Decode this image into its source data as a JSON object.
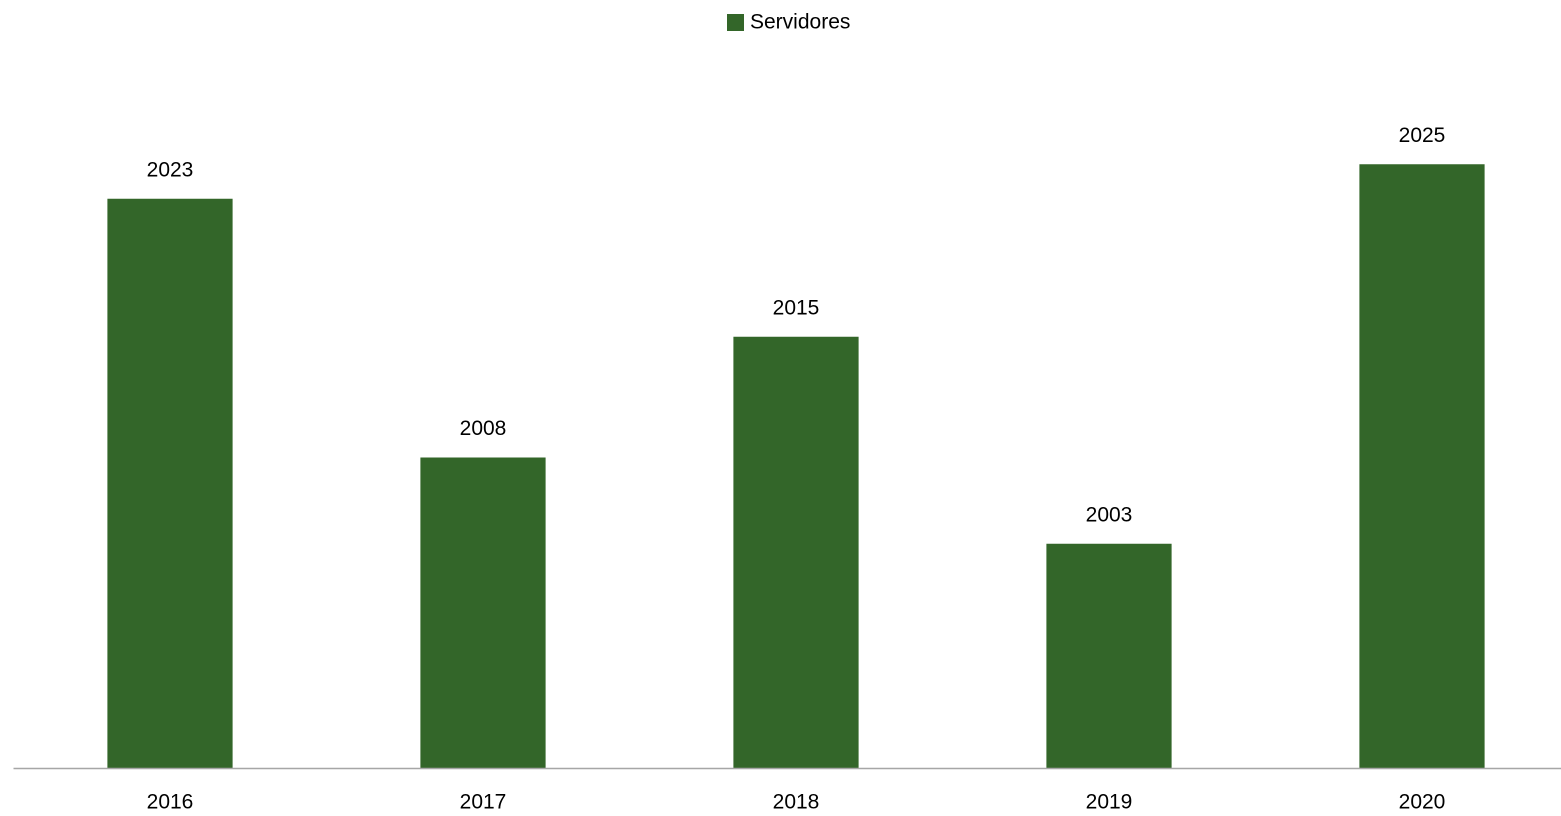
{
  "chart_data": {
    "type": "bar",
    "categories": [
      "2016",
      "2017",
      "2018",
      "2019",
      "2020"
    ],
    "series": [
      {
        "name": "Servidores",
        "color": "#336629",
        "values": [
          2023,
          2008,
          2015,
          2003,
          2025
        ]
      }
    ],
    "ylim": [
      1990,
      2026
    ],
    "legend": "top"
  }
}
